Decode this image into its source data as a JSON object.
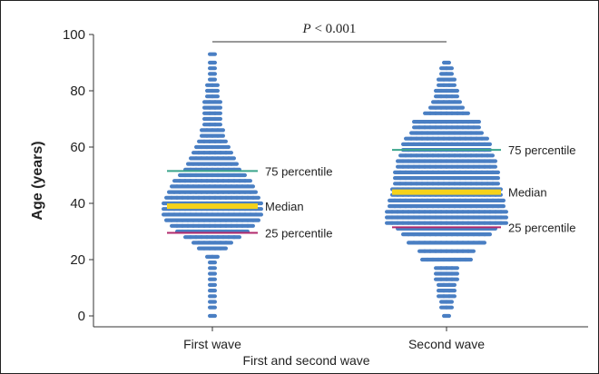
{
  "chart_data": {
    "type": "scatter",
    "subtype": "beeswarm",
    "title": "",
    "xlabel": "First and second wave",
    "ylabel": "Age (years)",
    "ylim": [
      0,
      100
    ],
    "yticks": [
      0,
      20,
      40,
      60,
      80,
      100
    ],
    "grid": false,
    "categories": [
      "First wave",
      "Second wave"
    ],
    "significance": {
      "p_label": "P",
      "p_rest": " < 0.001",
      "between": [
        "First wave",
        "Second wave"
      ]
    },
    "series": [
      {
        "category": "First wave",
        "median": 39,
        "p25": 29.5,
        "p75": 51.5,
        "age_min": 0,
        "age_max": 93,
        "labels": {
          "p75": "75 percentile",
          "median": "Median",
          "p25": "25 percentile"
        },
        "rows": [
          [
            0,
            1
          ],
          [
            3,
            1
          ],
          [
            5,
            1
          ],
          [
            7,
            1
          ],
          [
            9,
            1
          ],
          [
            11,
            1
          ],
          [
            13,
            1
          ],
          [
            15,
            1
          ],
          [
            17,
            1
          ],
          [
            19,
            1
          ],
          [
            21,
            2
          ],
          [
            24,
            5
          ],
          [
            26,
            7
          ],
          [
            28,
            10
          ],
          [
            30,
            13
          ],
          [
            32,
            15
          ],
          [
            34,
            17
          ],
          [
            36,
            18
          ],
          [
            38,
            18
          ],
          [
            40,
            18
          ],
          [
            42,
            17
          ],
          [
            44,
            16
          ],
          [
            46,
            15
          ],
          [
            48,
            14
          ],
          [
            50,
            12
          ],
          [
            52,
            10
          ],
          [
            54,
            9
          ],
          [
            56,
            8
          ],
          [
            58,
            7
          ],
          [
            60,
            6
          ],
          [
            62,
            5
          ],
          [
            64,
            4
          ],
          [
            66,
            4
          ],
          [
            68,
            3
          ],
          [
            70,
            3
          ],
          [
            72,
            3
          ],
          [
            74,
            3
          ],
          [
            76,
            3
          ],
          [
            78,
            2
          ],
          [
            80,
            2
          ],
          [
            82,
            2
          ],
          [
            84,
            1
          ],
          [
            86,
            1
          ],
          [
            88,
            1
          ],
          [
            90,
            1
          ],
          [
            93,
            1
          ]
        ]
      },
      {
        "category": "Second wave",
        "median": 44,
        "p25": 31.5,
        "p75": 59,
        "age_min": 0,
        "age_max": 90,
        "labels": {
          "p75": "75 percentile",
          "median": "Median",
          "p25": "25 percentile"
        },
        "rows": [
          [
            0,
            1
          ],
          [
            3,
            2
          ],
          [
            5,
            2
          ],
          [
            7,
            3
          ],
          [
            9,
            3
          ],
          [
            11,
            3
          ],
          [
            13,
            4
          ],
          [
            15,
            4
          ],
          [
            17,
            4
          ],
          [
            20,
            9
          ],
          [
            23,
            10
          ],
          [
            26,
            14
          ],
          [
            29,
            16
          ],
          [
            31,
            18
          ],
          [
            33,
            22
          ],
          [
            35,
            22
          ],
          [
            37,
            22
          ],
          [
            39,
            21
          ],
          [
            41,
            21
          ],
          [
            43,
            20
          ],
          [
            45,
            20
          ],
          [
            47,
            19
          ],
          [
            49,
            19
          ],
          [
            51,
            19
          ],
          [
            53,
            18
          ],
          [
            55,
            18
          ],
          [
            57,
            17
          ],
          [
            59,
            16
          ],
          [
            61,
            16
          ],
          [
            63,
            15
          ],
          [
            65,
            13
          ],
          [
            67,
            12
          ],
          [
            69,
            12
          ],
          [
            72,
            8
          ],
          [
            74,
            6
          ],
          [
            76,
            5
          ],
          [
            78,
            4
          ],
          [
            80,
            4
          ],
          [
            82,
            3
          ],
          [
            84,
            3
          ],
          [
            86,
            2
          ],
          [
            88,
            2
          ],
          [
            90,
            1
          ]
        ]
      }
    ],
    "colors": {
      "dots": "#4a7fc3",
      "median": "#f5d21a",
      "p75": "#3aa58b",
      "p25": "#b12a6c",
      "axis": "#333333"
    }
  }
}
